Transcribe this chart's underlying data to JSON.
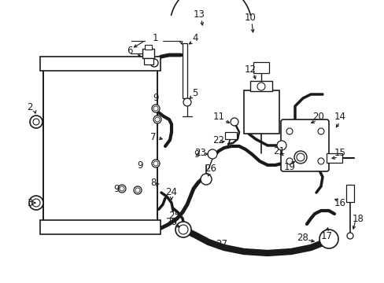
{
  "bg_color": "#ffffff",
  "line_color": "#1a1a1a",
  "figsize": [
    4.89,
    3.6
  ],
  "dpi": 100,
  "border": [
    0.02,
    0.02,
    0.98,
    0.98
  ]
}
